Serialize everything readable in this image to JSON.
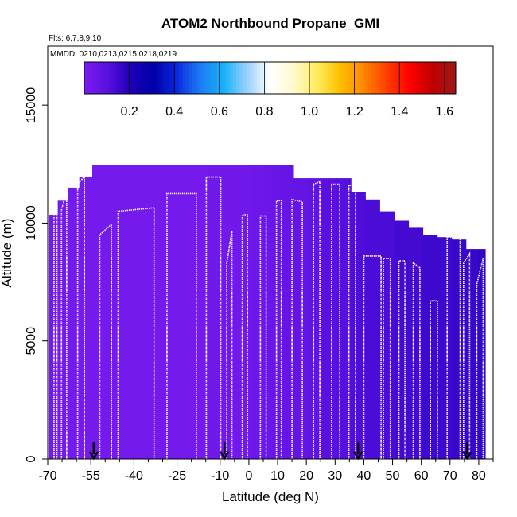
{
  "chart_data": {
    "type": "heatmap",
    "title": "ATOM2 Northbound Propane_GMI",
    "flights_label": "Flts: 6,7,8,9,10",
    "dates_label": "MMDD: 0210,0213,0215,0218,0219",
    "xlabel": "Latitude (deg N)",
    "ylabel": "Altitude (m)",
    "xlim": [
      -70,
      85
    ],
    "ylim": [
      0,
      17500
    ],
    "x_ticks": [
      -70,
      -55,
      -40,
      -25,
      -10,
      0,
      10,
      20,
      30,
      40,
      50,
      60,
      70,
      80
    ],
    "x_tick_labels": [
      "-70",
      "-55",
      "-40",
      "-25",
      "-10",
      "0",
      "10",
      "20",
      "30",
      "40",
      "50",
      "60",
      "70",
      "80"
    ],
    "x_minor_ticks": [
      -65,
      -60,
      -50,
      -45,
      -35,
      -30,
      -20,
      -15,
      -5,
      5,
      15,
      25,
      35,
      45,
      55,
      65,
      75,
      85
    ],
    "y_ticks": [
      0,
      5000,
      10000,
      15000
    ],
    "y_tick_labels": [
      "0",
      "5000",
      "10000",
      "15000"
    ],
    "colorbar": {
      "range": [
        0,
        1.65
      ],
      "ticks": [
        0.2,
        0.4,
        0.6,
        0.8,
        1.0,
        1.2,
        1.4,
        1.6
      ],
      "tick_labels": [
        "0.2",
        "0.4",
        "0.6",
        "0.8",
        "1.0",
        "1.2",
        "1.4",
        "1.6"
      ],
      "colors": [
        "#7a1cf0",
        "#5a10e0",
        "#1c00b8",
        "#0000a8",
        "#0a2ae0",
        "#1e7cf4",
        "#16b2f8",
        "#9ad0ff",
        "#ffffff",
        "#fffad0",
        "#ffee60",
        "#ffc000",
        "#ff8a00",
        "#ff4000",
        "#ff0000",
        "#c00000",
        "#a01818"
      ]
    },
    "columns": [
      {
        "lat": -68,
        "top": 10350,
        "v": 0.02
      },
      {
        "lat": -65,
        "top": 10950,
        "v": 0.02
      },
      {
        "lat": -61,
        "top": 11500,
        "v": 0.02
      },
      {
        "lat": -57,
        "top": 11950,
        "v": 0.02
      },
      {
        "lat": -52,
        "top": 12450,
        "v": 0.02
      },
      {
        "lat": -47,
        "top": 12450,
        "v": 0.02
      },
      {
        "lat": -42,
        "top": 12450,
        "v": 0.02
      },
      {
        "lat": -37,
        "top": 12450,
        "v": 0.02
      },
      {
        "lat": -32,
        "top": 12450,
        "v": 0.02
      },
      {
        "lat": -27,
        "top": 12450,
        "v": 0.02
      },
      {
        "lat": -22,
        "top": 12450,
        "v": 0.02
      },
      {
        "lat": -17,
        "top": 12450,
        "v": 0.02
      },
      {
        "lat": -12,
        "top": 12450,
        "v": 0.03
      },
      {
        "lat": -7,
        "top": 12450,
        "v": 0.03
      },
      {
        "lat": -2,
        "top": 12450,
        "v": 0.03
      },
      {
        "lat": 3,
        "top": 12450,
        "v": 0.04
      },
      {
        "lat": 8,
        "top": 12450,
        "v": 0.05
      },
      {
        "lat": 13,
        "top": 12450,
        "v": 0.06
      },
      {
        "lat": 18,
        "top": 11900,
        "v": 0.07
      },
      {
        "lat": 23,
        "top": 11900,
        "v": 0.08
      },
      {
        "lat": 28,
        "top": 11900,
        "v": 0.1
      },
      {
        "lat": 33,
        "top": 11900,
        "v": 0.11
      },
      {
        "lat": 38,
        "top": 11300,
        "v": 0.12
      },
      {
        "lat": 43,
        "top": 11000,
        "v": 0.13
      },
      {
        "lat": 48,
        "top": 10500,
        "v": 0.13
      },
      {
        "lat": 53,
        "top": 10100,
        "v": 0.14
      },
      {
        "lat": 58,
        "top": 9800,
        "v": 0.14
      },
      {
        "lat": 63,
        "top": 9500,
        "v": 0.15
      },
      {
        "lat": 68,
        "top": 9400,
        "v": 0.15
      },
      {
        "lat": 73,
        "top": 9300,
        "v": 0.16
      },
      {
        "lat": 78,
        "top": 8900,
        "v": 0.16
      },
      {
        "lat": 81.5,
        "top": 8900,
        "v": 0.17
      }
    ],
    "flight_tracks": [
      {
        "x": [
          -67.8,
          -67.8,
          -66.8,
          -66.8
        ],
        "y": [
          0,
          10300,
          10500,
          0
        ]
      },
      {
        "x": [
          -65.2,
          -65.2,
          -63.4,
          -63.4
        ],
        "y": [
          0,
          10550,
          11400,
          0
        ]
      },
      {
        "x": [
          -59.6,
          -59.6,
          -57.2,
          -57.2
        ],
        "y": [
          0,
          11600,
          12000,
          0
        ]
      },
      {
        "x": [
          -51.9,
          -51.9,
          -47.8,
          -47.8
        ],
        "y": [
          0,
          9500,
          9950,
          0
        ]
      },
      {
        "x": [
          -45.5,
          -45.5,
          -33.0,
          -33.0
        ],
        "y": [
          0,
          10500,
          10650,
          0
        ]
      },
      {
        "x": [
          -28.5,
          -28.5,
          -18.3,
          -18.3
        ],
        "y": [
          0,
          11250,
          11250,
          0
        ]
      },
      {
        "x": [
          -14.8,
          -14.8,
          -9.8,
          -9.8
        ],
        "y": [
          0,
          11950,
          11950,
          0
        ]
      },
      {
        "x": [
          -7.7,
          -7.7,
          -5.9,
          -5.9
        ],
        "y": [
          0,
          8300,
          9650,
          0
        ]
      },
      {
        "x": [
          -2.3,
          -2.3,
          -0.5,
          -0.5
        ],
        "y": [
          0,
          10350,
          10350,
          0
        ]
      },
      {
        "x": [
          4.0,
          4.0,
          6.0,
          6.0
        ],
        "y": [
          0,
          10300,
          10300,
          0
        ]
      },
      {
        "x": [
          9.6,
          9.6,
          11.3,
          11.3
        ],
        "y": [
          0,
          10950,
          10950,
          0
        ]
      },
      {
        "x": [
          15.0,
          15.0,
          18.6,
          18.6
        ],
        "y": [
          0,
          11000,
          10900,
          0
        ]
      },
      {
        "x": [
          22.5,
          22.5,
          24.7,
          24.7
        ],
        "y": [
          0,
          11650,
          11750,
          0
        ]
      },
      {
        "x": [
          28.8,
          28.8,
          31.6,
          31.6
        ],
        "y": [
          0,
          11650,
          11650,
          0
        ]
      },
      {
        "x": [
          34.8,
          34.8,
          37.1,
          37.1
        ],
        "y": [
          0,
          11600,
          11600,
          0
        ]
      },
      {
        "x": [
          40.0,
          40.0,
          46.0,
          46.0
        ],
        "y": [
          0,
          8600,
          8600,
          0
        ]
      },
      {
        "x": [
          46.8,
          46.8,
          49.2,
          49.2
        ],
        "y": [
          0,
          8500,
          8500,
          0
        ]
      },
      {
        "x": [
          52.2,
          52.2,
          54.3,
          54.3
        ],
        "y": [
          0,
          8400,
          8400,
          0
        ]
      },
      {
        "x": [
          57.2,
          57.2,
          59.5,
          59.5
        ],
        "y": [
          0,
          8300,
          8100,
          0
        ]
      },
      {
        "x": [
          63.2,
          63.2,
          65.6,
          65.6
        ],
        "y": [
          0,
          6700,
          6700,
          0
        ]
      },
      {
        "x": [
          69.0,
          69.0,
          73.5,
          73.5
        ],
        "y": [
          0,
          9400,
          9400,
          0
        ]
      },
      {
        "x": [
          74.7,
          74.7,
          76.8,
          76.8
        ],
        "y": [
          0,
          8300,
          8700,
          0
        ]
      },
      {
        "x": [
          79.3,
          79.3,
          81.5,
          81.5
        ],
        "y": [
          0,
          7400,
          8500,
          0
        ]
      }
    ],
    "flight_start_markers": [
      {
        "lat": -54,
        "alt": 700
      },
      {
        "lat": -8.5,
        "alt": 700
      },
      {
        "lat": 38,
        "alt": 700
      },
      {
        "lat": 76,
        "alt": 700
      }
    ]
  }
}
